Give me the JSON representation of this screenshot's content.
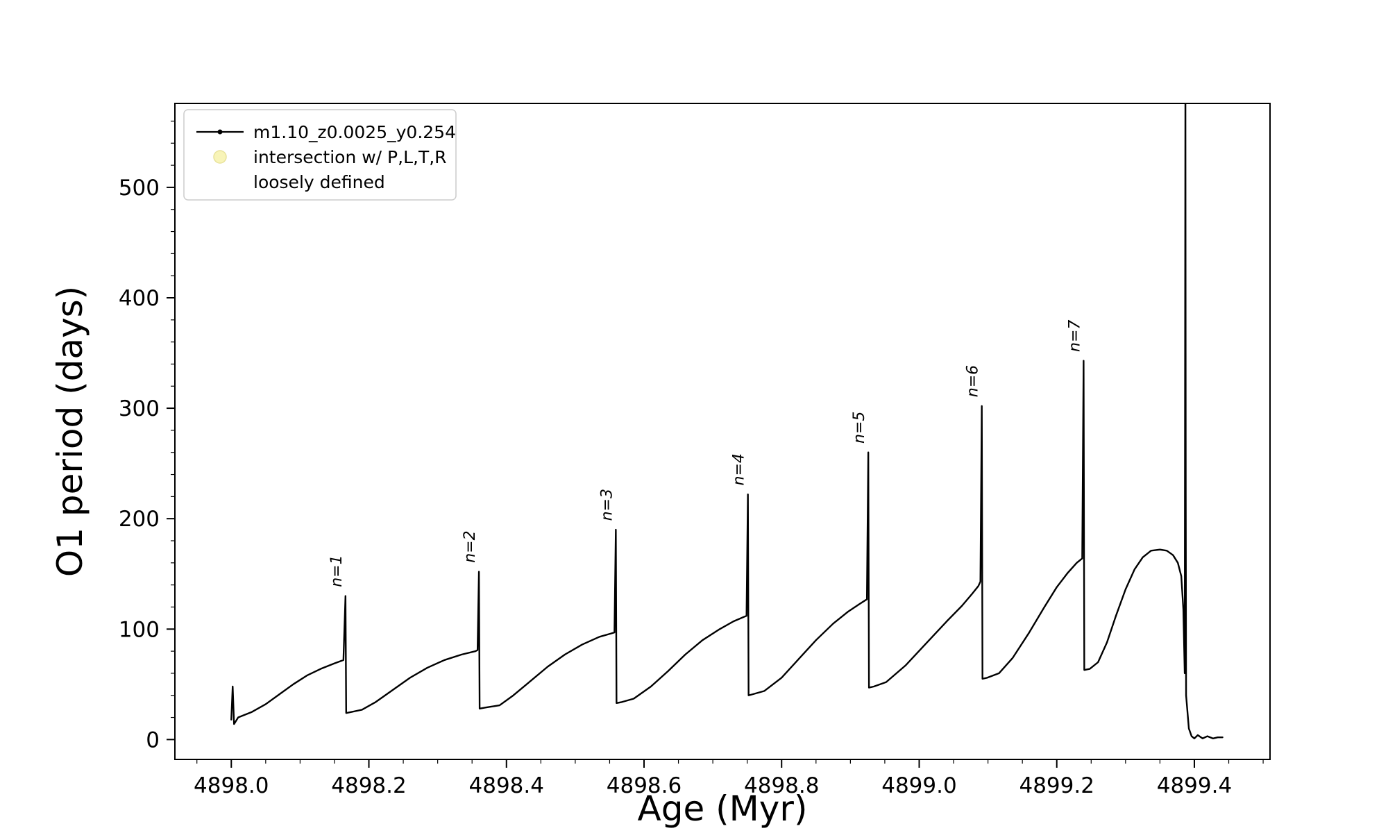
{
  "page": {
    "background": "#ffffff"
  },
  "chart_data": {
    "type": "line",
    "title": "",
    "xlabel": "Age (Myr)",
    "ylabel": "O1 period (days)",
    "xlim": [
      4897.918,
      4899.51
    ],
    "ylim": [
      -18,
      576
    ],
    "grid": false,
    "xticks": {
      "values": [
        4898.0,
        4898.2,
        4898.4,
        4898.6,
        4898.8,
        4899.0,
        4899.2,
        4899.4
      ],
      "labels": [
        "4898.0",
        "4898.2",
        "4898.4",
        "4898.6",
        "4898.8",
        "4899.0",
        "4899.2",
        "4899.4"
      ],
      "major_step": 0.2,
      "minor_step": 0.05
    },
    "yticks": {
      "values": [
        0,
        100,
        200,
        300,
        400,
        500
      ],
      "labels": [
        "0",
        "100",
        "200",
        "300",
        "400",
        "500"
      ],
      "major_step": 100,
      "minor_step": 20
    },
    "legend": {
      "position": "upper-left",
      "entries": [
        {
          "marker": "line-dot",
          "color": "#000000",
          "label_lines": [
            "m1.10_z0.0025_y0.254"
          ]
        },
        {
          "marker": "dot",
          "color": "#f8f4b8",
          "label_lines": [
            "intersection w/ P,L,T,R",
            "loosely defined"
          ]
        }
      ]
    },
    "annotations": [
      {
        "text": "n=1",
        "x": 4898.166,
        "y": 138,
        "rotation": 90
      },
      {
        "text": "n=2",
        "x": 4898.36,
        "y": 160,
        "rotation": 90
      },
      {
        "text": "n=3",
        "x": 4898.559,
        "y": 198,
        "rotation": 90
      },
      {
        "text": "n=4",
        "x": 4898.751,
        "y": 230,
        "rotation": 90
      },
      {
        "text": "n=5",
        "x": 4898.926,
        "y": 268,
        "rotation": 90
      },
      {
        "text": "n=6",
        "x": 4899.091,
        "y": 310,
        "rotation": 90
      },
      {
        "text": "n=7",
        "x": 4899.239,
        "y": 351,
        "rotation": 90
      }
    ],
    "series": [
      {
        "name": "m1.10_z0.0025_y0.254",
        "color": "#000000",
        "marker": "point",
        "points": [
          [
            4898.0,
            18
          ],
          [
            4898.002,
            48
          ],
          [
            4898.004,
            14
          ],
          [
            4898.01,
            20
          ],
          [
            4898.03,
            25
          ],
          [
            4898.05,
            32
          ],
          [
            4898.07,
            41
          ],
          [
            4898.09,
            50
          ],
          [
            4898.11,
            58
          ],
          [
            4898.13,
            64
          ],
          [
            4898.15,
            69
          ],
          [
            4898.163,
            72
          ],
          [
            4898.166,
            130
          ],
          [
            4898.167,
            24
          ],
          [
            4898.175,
            25
          ],
          [
            4898.19,
            27
          ],
          [
            4898.21,
            34
          ],
          [
            4898.235,
            45
          ],
          [
            4898.26,
            56
          ],
          [
            4898.285,
            65
          ],
          [
            4898.31,
            72
          ],
          [
            4898.335,
            77
          ],
          [
            4898.355,
            80
          ],
          [
            4898.358,
            81
          ],
          [
            4898.36,
            152
          ],
          [
            4898.361,
            28
          ],
          [
            4898.37,
            29
          ],
          [
            4898.39,
            31
          ],
          [
            4898.41,
            40
          ],
          [
            4898.435,
            53
          ],
          [
            4898.46,
            66
          ],
          [
            4898.485,
            77
          ],
          [
            4898.51,
            86
          ],
          [
            4898.535,
            93
          ],
          [
            4898.552,
            96
          ],
          [
            4898.557,
            97
          ],
          [
            4898.559,
            190
          ],
          [
            4898.56,
            33
          ],
          [
            4898.568,
            34
          ],
          [
            4898.585,
            37
          ],
          [
            4898.61,
            48
          ],
          [
            4898.635,
            62
          ],
          [
            4898.66,
            77
          ],
          [
            4898.685,
            90
          ],
          [
            4898.71,
            100
          ],
          [
            4898.73,
            107
          ],
          [
            4898.745,
            111
          ],
          [
            4898.749,
            112
          ],
          [
            4898.751,
            222
          ],
          [
            4898.752,
            40
          ],
          [
            4898.758,
            41
          ],
          [
            4898.775,
            44
          ],
          [
            4898.8,
            56
          ],
          [
            4898.825,
            73
          ],
          [
            4898.85,
            90
          ],
          [
            4898.875,
            105
          ],
          [
            4898.897,
            116
          ],
          [
            4898.914,
            123
          ],
          [
            4898.924,
            127
          ],
          [
            4898.926,
            260
          ],
          [
            4898.927,
            47
          ],
          [
            4898.934,
            48
          ],
          [
            4898.952,
            52
          ],
          [
            4898.98,
            67
          ],
          [
            4899.01,
            87
          ],
          [
            4899.04,
            107
          ],
          [
            4899.062,
            121
          ],
          [
            4899.077,
            132
          ],
          [
            4899.086,
            139
          ],
          [
            4899.089,
            143
          ],
          [
            4899.091,
            302
          ],
          [
            4899.092,
            55
          ],
          [
            4899.099,
            56
          ],
          [
            4899.116,
            60
          ],
          [
            4899.136,
            74
          ],
          [
            4899.16,
            97
          ],
          [
            4899.182,
            120
          ],
          [
            4899.2,
            138
          ],
          [
            4899.216,
            151
          ],
          [
            4899.229,
            160
          ],
          [
            4899.237,
            164
          ],
          [
            4899.239,
            343
          ],
          [
            4899.24,
            63
          ],
          [
            4899.248,
            64
          ],
          [
            4899.26,
            70
          ],
          [
            4899.273,
            88
          ],
          [
            4899.286,
            112
          ],
          [
            4899.3,
            136
          ],
          [
            4899.313,
            154
          ],
          [
            4899.325,
            165
          ],
          [
            4899.337,
            171
          ],
          [
            4899.35,
            172
          ],
          [
            4899.36,
            171
          ],
          [
            4899.369,
            167
          ],
          [
            4899.376,
            160
          ],
          [
            4899.381,
            148
          ],
          [
            4899.384,
            118
          ],
          [
            4899.386,
            60
          ],
          [
            4899.387,
            600
          ],
          [
            4899.3875,
            222
          ],
          [
            4899.388,
            40
          ],
          [
            4899.392,
            10
          ],
          [
            4899.396,
            3
          ],
          [
            4899.4,
            1
          ],
          [
            4899.405,
            4
          ],
          [
            4899.412,
            1
          ],
          [
            4899.419,
            3
          ],
          [
            4899.427,
            1
          ],
          [
            4899.434,
            2
          ],
          [
            4899.441,
            2
          ]
        ]
      }
    ],
    "colors": {
      "line": "#000000",
      "intersection_marker_fill": "#f8f4b8",
      "intersection_marker_stroke": "#e8e29c",
      "legend_border": "#cccccc",
      "axes": "#000000"
    }
  }
}
